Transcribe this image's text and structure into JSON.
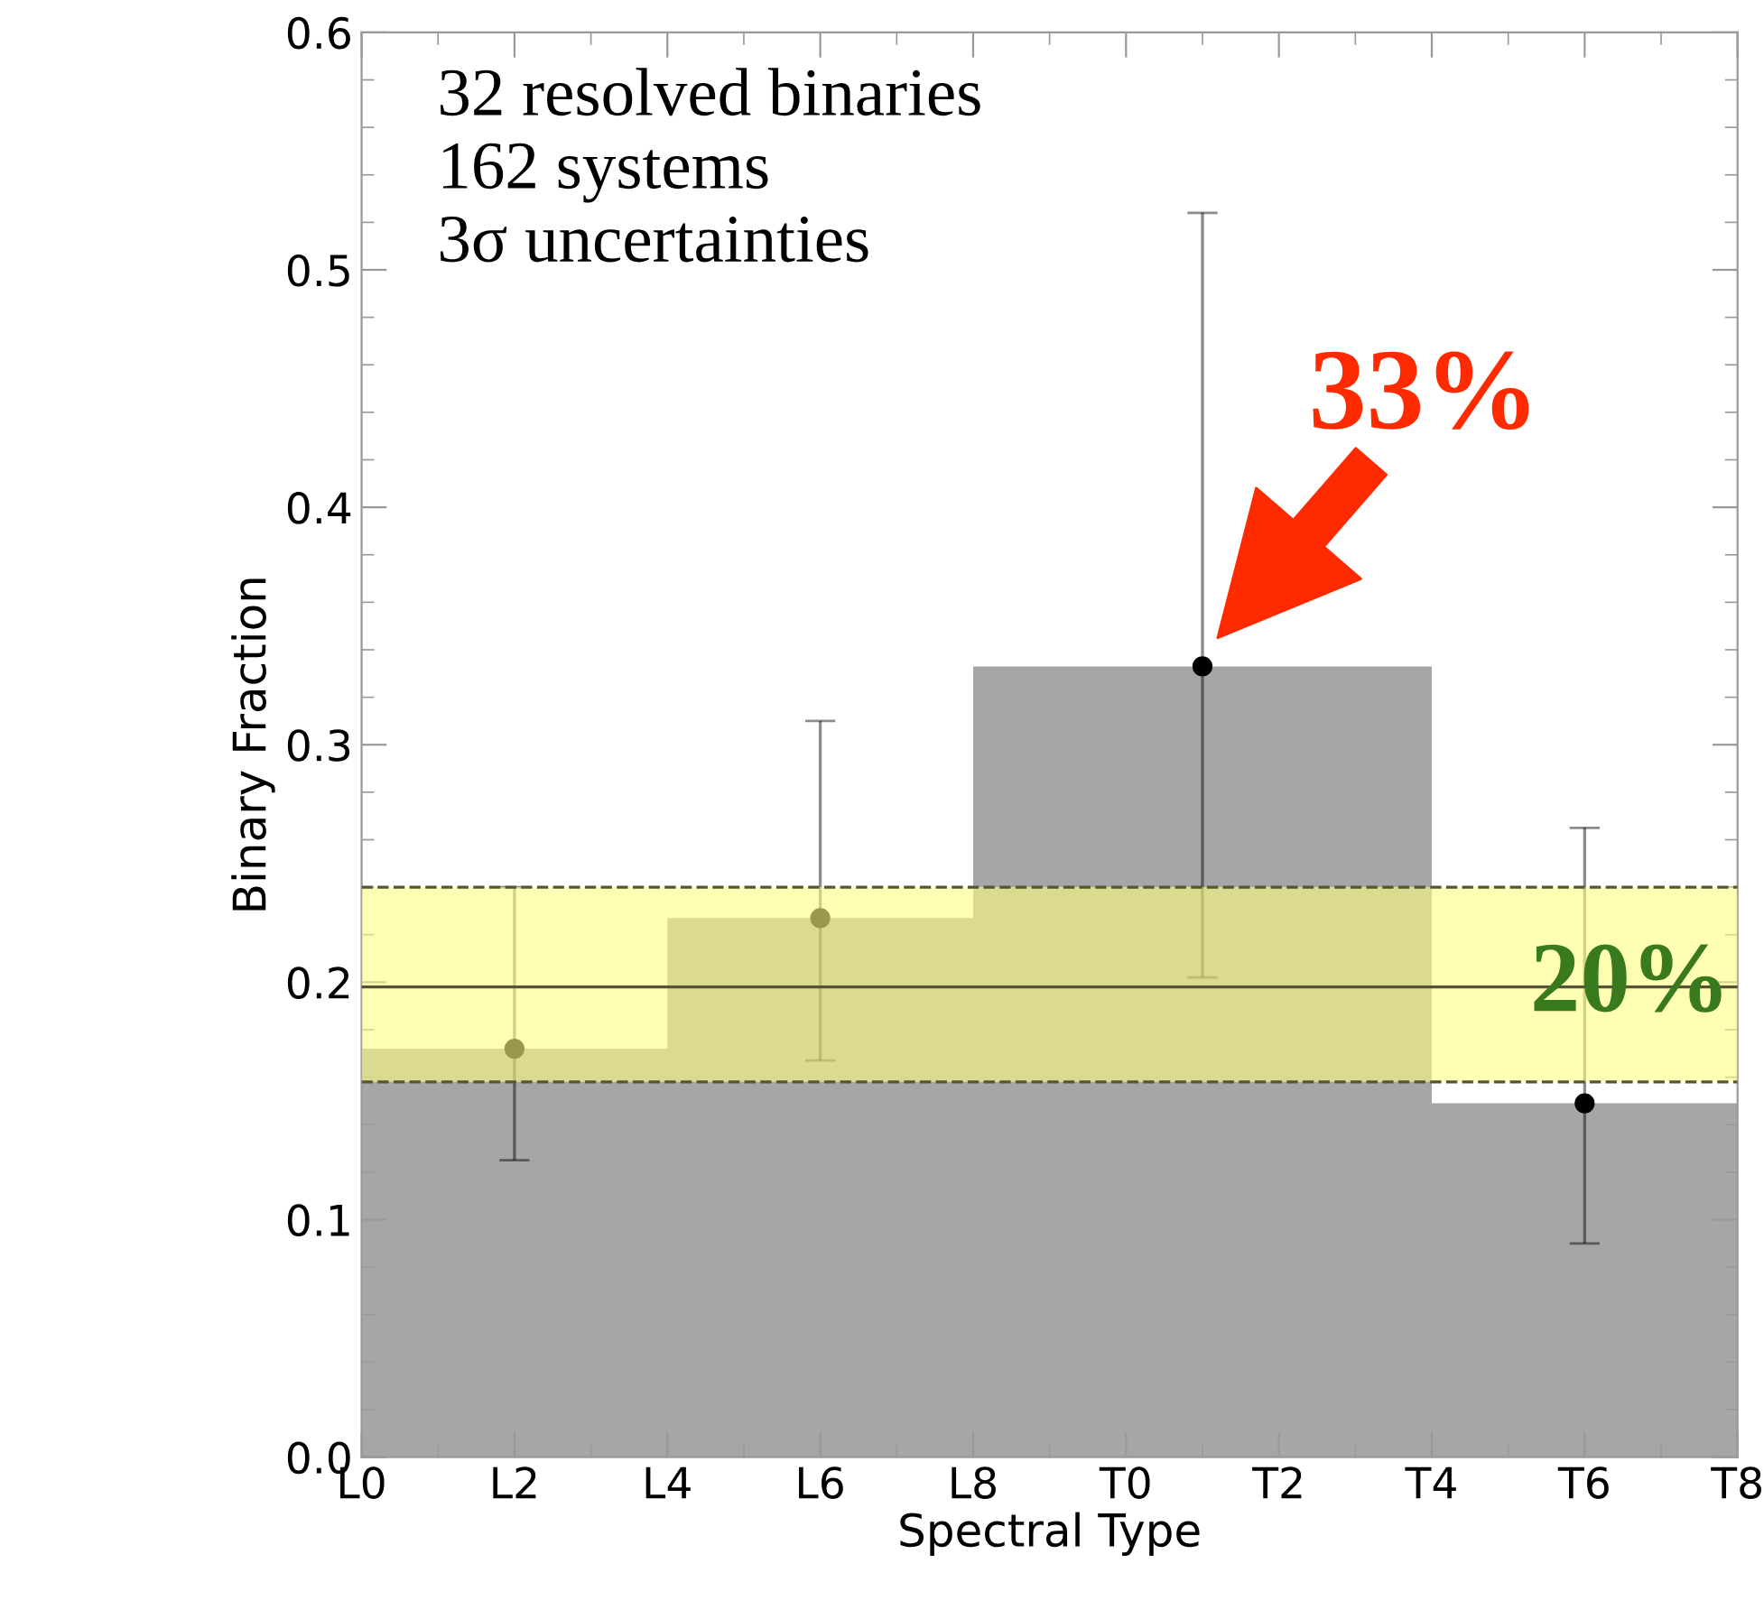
{
  "chart_data": {
    "type": "area",
    "xlabel": "Spectral Type",
    "ylabel": "Binary Fraction",
    "categories": [
      "L0",
      null,
      "L2",
      null,
      "L4",
      null,
      "L6",
      null,
      "L8",
      null,
      "T0",
      null,
      "T2",
      null,
      "T4",
      null,
      "T6",
      null,
      "T8"
    ],
    "values": [
      0.172,
      0.172,
      0.172,
      0.172,
      0.227,
      0.227,
      0.227,
      0.227,
      0.333,
      0.333,
      0.333,
      0.333,
      0.333,
      0.333,
      0.149,
      0.149,
      0.149,
      0.149,
      0.149
    ],
    "color": "#a6a6a6",
    "series": [
      {
        "type": "scatter",
        "values": [
          null,
          null,
          0.172,
          null,
          null,
          null,
          0.227,
          null,
          null,
          null,
          null,
          0.333,
          null,
          null,
          null,
          null,
          0.149,
          null,
          null
        ],
        "errors": [
          null,
          null,
          [
            0.125,
            0.24
          ],
          null,
          null,
          null,
          [
            0.167,
            0.31
          ],
          null,
          null,
          null,
          null,
          [
            0.202,
            0.524
          ],
          null,
          null,
          null,
          null,
          [
            0.09,
            0.265
          ],
          null,
          null
        ],
        "color": "#000000",
        "marker": "circle"
      }
    ],
    "bands": [
      {
        "axis": "y",
        "from": 0.158,
        "to": 0.24,
        "color": "#ffff80"
      }
    ],
    "ref_lines": [
      {
        "axis": "y",
        "value": 0.198,
        "color": "#555533",
        "line_style": "solid"
      },
      {
        "axis": "y",
        "value": 0.158,
        "color": "#555533",
        "line_style": "dashed"
      },
      {
        "axis": "y",
        "value": 0.24,
        "color": "#555533",
        "line_style": "dashed"
      }
    ],
    "annotations": [
      "32 resolved binaries",
      "162 systems",
      "3σ uncertainties",
      "33%",
      {
        "text": "20%",
        "y": 0.198
      }
    ],
    "ylim": [
      0,
      0.6
    ],
    "yticks": [
      {
        "value": 0,
        "label": "0.0"
      },
      {
        "value": 0.1,
        "label": "0.1"
      },
      {
        "value": 0.2,
        "label": "0.2"
      },
      {
        "value": 0.3,
        "label": "0.3"
      },
      {
        "value": 0.4,
        "label": "0.4"
      },
      {
        "value": 0.5,
        "label": "0.5"
      },
      {
        "value": 0.6,
        "label": "0.6"
      }
    ],
    "grid": false,
    "legend": false
  }
}
